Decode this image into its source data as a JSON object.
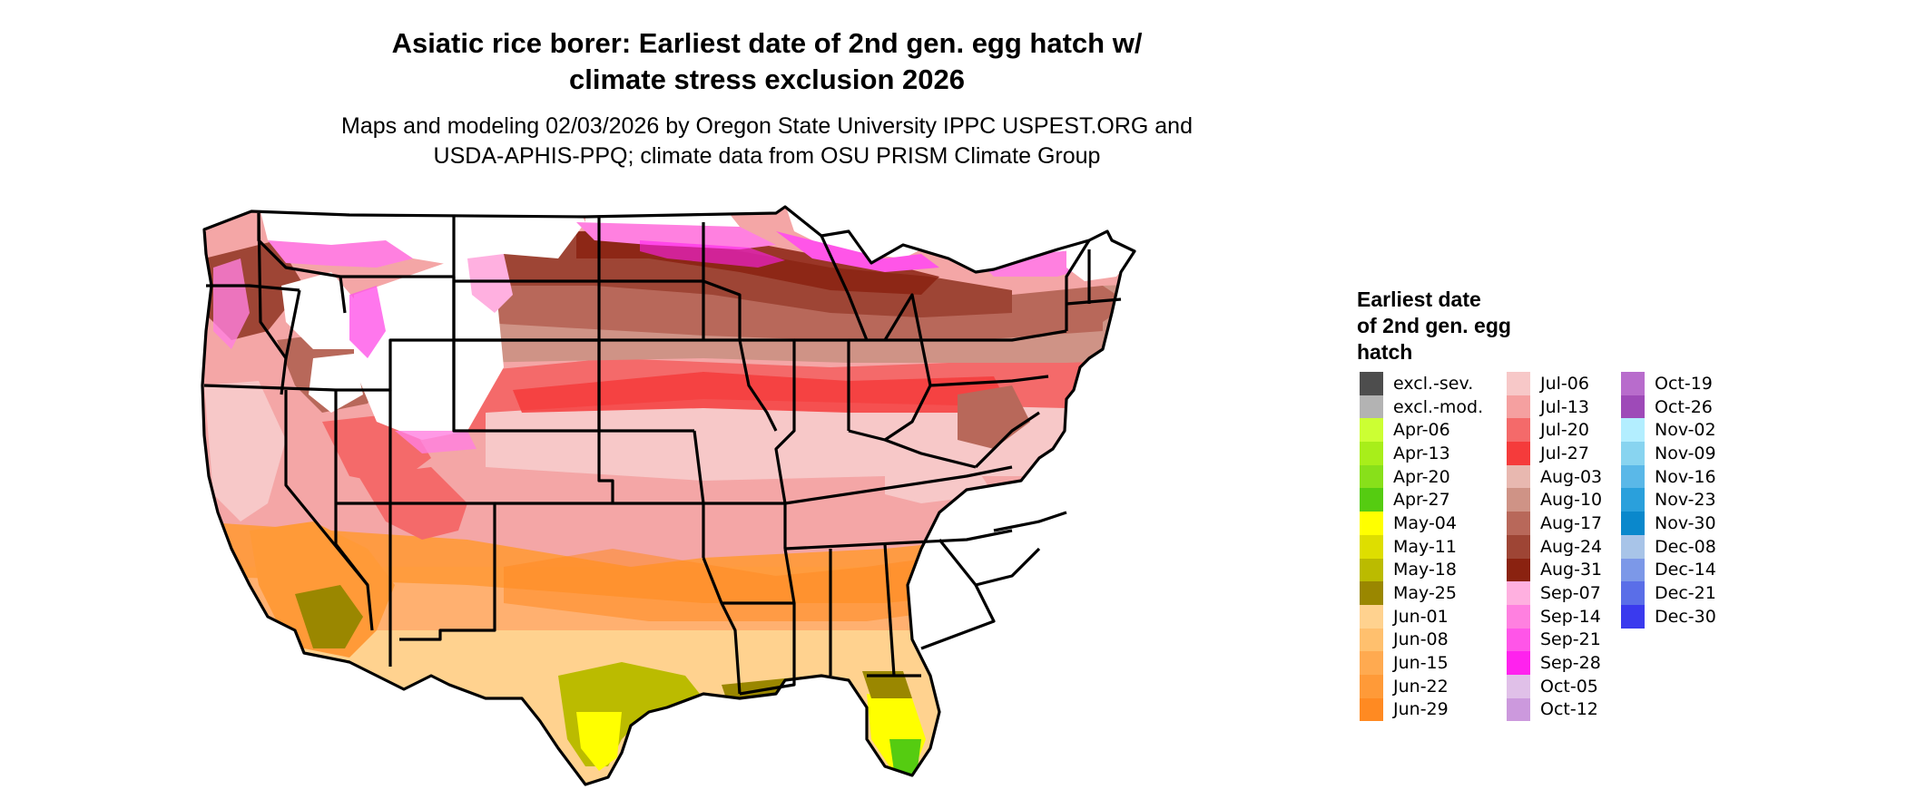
{
  "header": {
    "title_line1": "Asiatic rice borer: Earliest date of 2nd gen. egg hatch w/",
    "title_line2": "climate stress exclusion 2026",
    "subtitle_line1": "Maps and modeling 02/03/2026 by Oregon State University IPPC USPEST.ORG and",
    "subtitle_line2": "USDA-APHIS-PPQ; climate data from OSU PRISM Climate Group"
  },
  "map": {
    "region": "contiguous-united-states",
    "border_color": "#000000"
  },
  "legend": {
    "title_line1": "Earliest date",
    "title_line2": "of 2nd gen. egg",
    "title_line3": "hatch",
    "columns": [
      [
        {
          "label": "excl.-sev.",
          "color": "#4d4d4d"
        },
        {
          "label": "excl.-mod.",
          "color": "#b3b3b3"
        },
        {
          "label": "Apr-06",
          "color": "#ccff33"
        },
        {
          "label": "Apr-13",
          "color": "#a8ee1a"
        },
        {
          "label": "Apr-20",
          "color": "#88e01a"
        },
        {
          "label": "Apr-27",
          "color": "#55cc11"
        },
        {
          "label": "May-04",
          "color": "#ffff00"
        },
        {
          "label": "May-11",
          "color": "#dede00"
        },
        {
          "label": "May-18",
          "color": "#bbbb00"
        },
        {
          "label": "May-25",
          "color": "#9a8700"
        },
        {
          "label": "Jun-01",
          "color": "#ffd28f"
        },
        {
          "label": "Jun-08",
          "color": "#ffc06e"
        },
        {
          "label": "Jun-15",
          "color": "#ffaa50"
        },
        {
          "label": "Jun-22",
          "color": "#ff9a38"
        },
        {
          "label": "Jun-29",
          "color": "#ff8a22"
        }
      ],
      [
        {
          "label": "Jul-06",
          "color": "#f7c8c8"
        },
        {
          "label": "Jul-13",
          "color": "#f5a0a0"
        },
        {
          "label": "Jul-20",
          "color": "#f46a6a"
        },
        {
          "label": "Jul-27",
          "color": "#f53b3b"
        },
        {
          "label": "Aug-03",
          "color": "#e8b8b0"
        },
        {
          "label": "Aug-10",
          "color": "#cf9386"
        },
        {
          "label": "Aug-17",
          "color": "#b8685a"
        },
        {
          "label": "Aug-24",
          "color": "#9e4535"
        },
        {
          "label": "Aug-31",
          "color": "#8a2210"
        },
        {
          "label": "Sep-07",
          "color": "#ffb0e0"
        },
        {
          "label": "Sep-14",
          "color": "#ff80e0"
        },
        {
          "label": "Sep-21",
          "color": "#ff55e8"
        },
        {
          "label": "Sep-28",
          "color": "#ff22ee"
        },
        {
          "label": "Oct-05",
          "color": "#e0c0e8"
        },
        {
          "label": "Oct-12",
          "color": "#cc99dd"
        }
      ],
      [
        {
          "label": "Oct-19",
          "color": "#b86ccc"
        },
        {
          "label": "Oct-26",
          "color": "#9e4ab8"
        },
        {
          "label": "Nov-02",
          "color": "#b3eeff"
        },
        {
          "label": "Nov-09",
          "color": "#88d4f0"
        },
        {
          "label": "Nov-16",
          "color": "#5ab8e8"
        },
        {
          "label": "Nov-23",
          "color": "#2aa0dc"
        },
        {
          "label": "Nov-30",
          "color": "#0a88cc"
        },
        {
          "label": "Dec-08",
          "color": "#a8c4e8"
        },
        {
          "label": "Dec-14",
          "color": "#7c98e8"
        },
        {
          "label": "Dec-21",
          "color": "#5a6ee8"
        },
        {
          "label": "Dec-30",
          "color": "#3a3aee"
        }
      ]
    ]
  }
}
